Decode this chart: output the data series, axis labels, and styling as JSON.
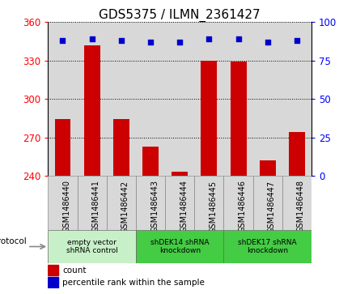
{
  "title": "GDS5375 / ILMN_2361427",
  "samples": [
    "GSM1486440",
    "GSM1486441",
    "GSM1486442",
    "GSM1486443",
    "GSM1486444",
    "GSM1486445",
    "GSM1486446",
    "GSM1486447",
    "GSM1486448"
  ],
  "count_values": [
    284,
    342,
    284,
    263,
    243,
    330,
    329,
    252,
    274
  ],
  "percentile_values": [
    88,
    89,
    88,
    87,
    87,
    89,
    89,
    87,
    88
  ],
  "ylim_left": [
    240,
    360
  ],
  "ylim_right": [
    0,
    100
  ],
  "yticks_left": [
    240,
    270,
    300,
    330,
    360
  ],
  "yticks_right": [
    0,
    25,
    50,
    75,
    100
  ],
  "bar_color": "#cc0000",
  "dot_color": "#0000cc",
  "background_color": "#ffffff",
  "protocols": [
    {
      "label": "empty vector\nshRNA control",
      "start": 0,
      "end": 3,
      "color": "#c8f0c8"
    },
    {
      "label": "shDEK14 shRNA\nknockdown",
      "start": 3,
      "end": 6,
      "color": "#44cc44"
    },
    {
      "label": "shDEK17 shRNA\nknockdown",
      "start": 6,
      "end": 9,
      "color": "#44cc44"
    }
  ],
  "legend_count_label": "count",
  "legend_pct_label": "percentile rank within the sample",
  "protocol_label": "protocol",
  "title_fontsize": 11,
  "tick_fontsize": 8.5,
  "sample_fontsize": 7
}
